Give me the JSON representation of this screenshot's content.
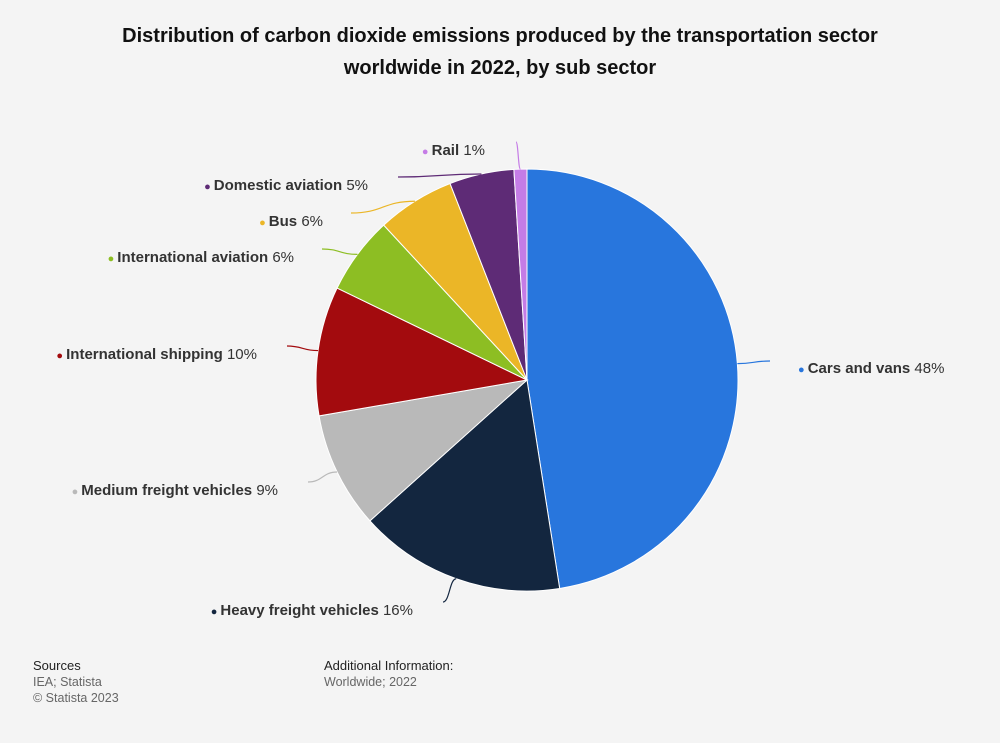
{
  "title_lines": [
    "Distribution of carbon dioxide emissions produced by the transportation sector",
    "worldwide in 2022, by sub sector"
  ],
  "chart_data": {
    "type": "pie",
    "title": "Distribution of carbon dioxide emissions produced by the transportation sector worldwide in 2022, by sub sector",
    "unit": "%",
    "slices": [
      {
        "label": "Cars and vans",
        "value": 48,
        "display": "48%",
        "color": "#2876dd"
      },
      {
        "label": "Heavy freight vehicles",
        "value": 16,
        "display": "16%",
        "color": "#13263f"
      },
      {
        "label": "Medium freight vehicles",
        "value": 9,
        "display": "9%",
        "color": "#b9b9b9"
      },
      {
        "label": "International shipping",
        "value": 10,
        "display": "10%",
        "color": "#a30b0e"
      },
      {
        "label": "International aviation",
        "value": 6,
        "display": "6%",
        "color": "#8dbe23"
      },
      {
        "label": "Bus",
        "value": 6,
        "display": "6%",
        "color": "#ebb627"
      },
      {
        "label": "Domestic aviation",
        "value": 5,
        "display": "5%",
        "color": "#5e2b76"
      },
      {
        "label": "Rail",
        "value": 1,
        "display": "1%",
        "color": "#c57ce6"
      }
    ]
  },
  "footer": {
    "sources_heading": "Sources",
    "sources_lines": [
      "IEA; Statista",
      "© Statista 2023"
    ],
    "additional_heading": "Additional Information:",
    "additional_lines": [
      "Worldwide; 2022"
    ]
  }
}
